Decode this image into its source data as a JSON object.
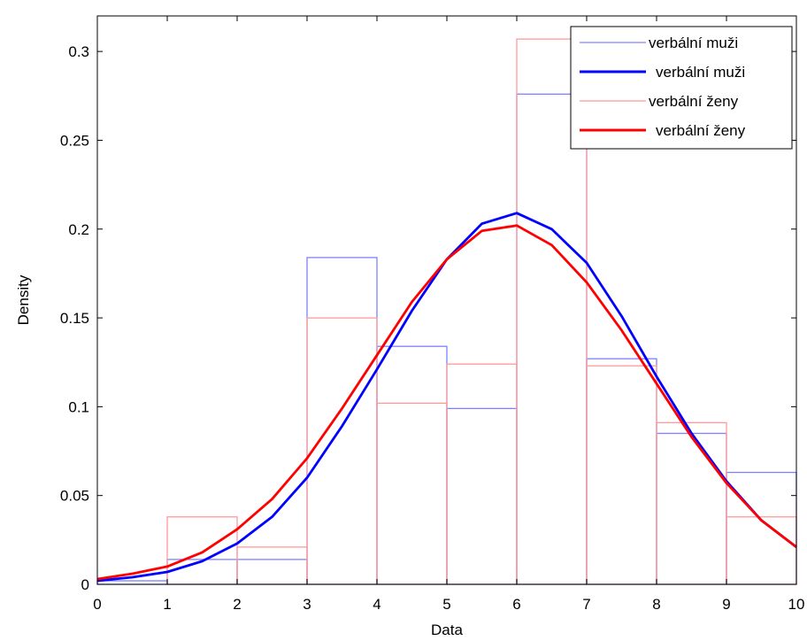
{
  "chart_data": {
    "type": "histogram-with-density-fit",
    "xlabel": "Data",
    "ylabel": "Density",
    "xlim": [
      0,
      10
    ],
    "ylim": [
      0,
      0.32
    ],
    "xticks": [
      0,
      1,
      2,
      3,
      4,
      5,
      6,
      7,
      8,
      9,
      10
    ],
    "xtick_labels": [
      "0",
      "1",
      "2",
      "3",
      "4",
      "5",
      "6",
      "7",
      "8",
      "9",
      "10"
    ],
    "yticks": [
      0,
      0.05,
      0.1,
      0.15,
      0.2,
      0.25,
      0.3
    ],
    "ytick_labels": [
      "0",
      "0.05",
      "0.1",
      "0.15",
      "0.2",
      "0.25",
      "0.3"
    ],
    "grid": false,
    "legend_position": "top-right",
    "bin_edges": [
      0,
      1,
      2,
      3,
      4,
      5,
      6,
      7,
      8,
      9,
      10
    ],
    "series": [
      {
        "name": "verbální muži",
        "kind": "histogram",
        "color": "#8080ff",
        "values": [
          0.002,
          0.014,
          0.014,
          0.184,
          0.134,
          0.099,
          0.276,
          0.127,
          0.085,
          0.063
        ]
      },
      {
        "name": "verbální muži",
        "kind": "fit",
        "color": "#0000ff",
        "x": [
          0,
          0.5,
          1,
          1.5,
          2,
          2.5,
          3,
          3.5,
          4,
          4.5,
          5,
          5.5,
          6,
          6.5,
          7,
          7.5,
          8,
          8.5,
          9,
          9.5,
          10
        ],
        "values": [
          0.002,
          0.004,
          0.007,
          0.013,
          0.023,
          0.038,
          0.06,
          0.089,
          0.121,
          0.154,
          0.183,
          0.203,
          0.209,
          0.2,
          0.181,
          0.151,
          0.117,
          0.085,
          0.058,
          0.036,
          0.021
        ]
      },
      {
        "name": "verbální ženy",
        "kind": "histogram",
        "color": "#ff9999",
        "values": [
          0.0,
          0.038,
          0.021,
          0.15,
          0.102,
          0.124,
          0.307,
          0.123,
          0.091,
          0.038
        ]
      },
      {
        "name": "verbální ženy",
        "kind": "fit",
        "color": "#ff0000",
        "x": [
          0,
          0.5,
          1,
          1.5,
          2,
          2.5,
          3,
          3.5,
          4,
          4.5,
          5,
          5.5,
          6,
          6.5,
          7,
          7.5,
          8,
          8.5,
          9,
          9.5,
          10
        ],
        "values": [
          0.003,
          0.006,
          0.01,
          0.018,
          0.031,
          0.048,
          0.071,
          0.099,
          0.129,
          0.159,
          0.183,
          0.199,
          0.202,
          0.191,
          0.17,
          0.143,
          0.113,
          0.083,
          0.057,
          0.036,
          0.021
        ]
      }
    ]
  }
}
